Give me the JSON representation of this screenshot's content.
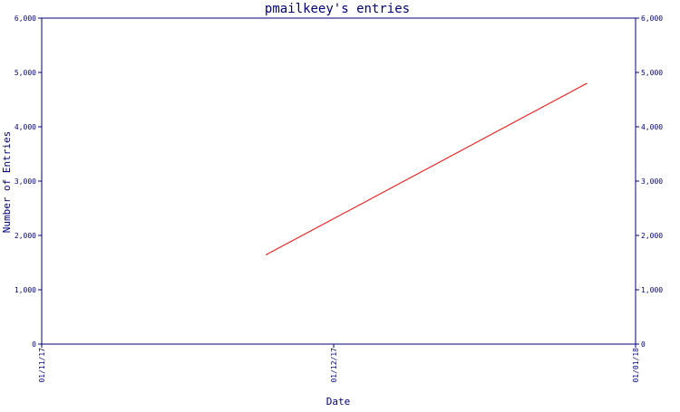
{
  "chart_data": {
    "type": "line",
    "title": "pmailkeey's entries",
    "xlabel": "Date",
    "ylabel": "Number of Entries",
    "x_ticks": [
      "01/11/17",
      "01/12/17",
      "01/01/18"
    ],
    "y_ticks": [
      "0",
      "1,000",
      "2,000",
      "3,000",
      "4,000",
      "5,000",
      "6,000"
    ],
    "xlim": [
      "01/11/17",
      "01/01/18"
    ],
    "ylim": [
      0,
      6000
    ],
    "grid": false,
    "legend": "none",
    "series": [
      {
        "color": "#ff0000",
        "points": [
          {
            "x": "2017-11-24",
            "y": 1640
          },
          {
            "x": "2017-12-27",
            "y": 4800
          }
        ]
      }
    ],
    "colors": {
      "axis": "#000080",
      "text": "#000080",
      "line": "#ff0000",
      "background": "#ffffff"
    }
  }
}
